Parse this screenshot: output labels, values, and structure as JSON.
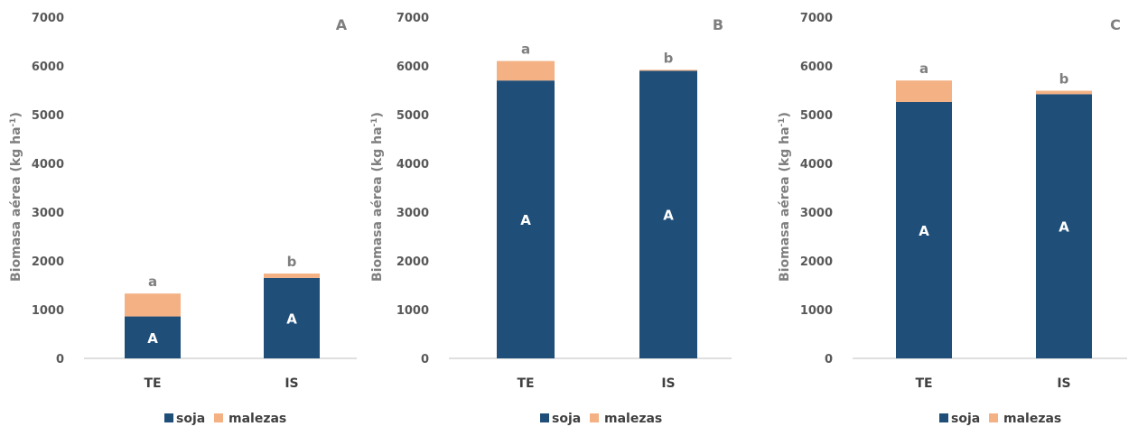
{
  "colors": {
    "soja": "#1f4e79",
    "malezas": "#f4b183",
    "axis": "#bfbfbf",
    "text": "#595959"
  },
  "chart_data": [
    {
      "type": "bar",
      "stacked": true,
      "panel_label": "A",
      "categories": [
        "TE",
        "IS"
      ],
      "series": [
        {
          "name": "soja",
          "values": [
            860,
            1650
          ]
        },
        {
          "name": "malezas",
          "values": [
            470,
            90
          ]
        }
      ],
      "lower_letters": [
        "a",
        "b"
      ],
      "upper_letters": [
        "A",
        "A"
      ],
      "ylabel": "Biomasa aérea (kg ha",
      "ylabel_sup": "-1",
      "ylabel_close": ")",
      "ylim": [
        0,
        7000
      ],
      "yticks": [
        0,
        1000,
        2000,
        3000,
        4000,
        5000,
        6000,
        7000
      ],
      "legend": [
        "soja",
        "malezas"
      ],
      "legend_position": "bottom",
      "grid": false
    },
    {
      "type": "bar",
      "stacked": true,
      "panel_label": "B",
      "categories": [
        "TE",
        "IS"
      ],
      "series": [
        {
          "name": "soja",
          "values": [
            5700,
            5900
          ]
        },
        {
          "name": "malezas",
          "values": [
            400,
            20
          ]
        }
      ],
      "lower_letters": [
        "a",
        "b"
      ],
      "upper_letters": [
        "A",
        "A"
      ],
      "ylabel": "Biomasa aérea (kg ha",
      "ylabel_sup": "-1",
      "ylabel_close": ")",
      "ylim": [
        0,
        7000
      ],
      "yticks": [
        0,
        1000,
        2000,
        3000,
        4000,
        5000,
        6000,
        7000
      ],
      "legend": [
        "soja",
        "malezas"
      ],
      "legend_position": "bottom",
      "grid": false
    },
    {
      "type": "bar",
      "stacked": true,
      "panel_label": "C",
      "categories": [
        "TE",
        "IS"
      ],
      "series": [
        {
          "name": "soja",
          "values": [
            5260,
            5420
          ]
        },
        {
          "name": "malezas",
          "values": [
            440,
            70
          ]
        }
      ],
      "lower_letters": [
        "a",
        "b"
      ],
      "upper_letters": [
        "A",
        "A"
      ],
      "ylabel": "Biomasa aérea (kg ha",
      "ylabel_sup": "-1",
      "ylabel_close": ")",
      "ylim": [
        0,
        7000
      ],
      "yticks": [
        0,
        1000,
        2000,
        3000,
        4000,
        5000,
        6000,
        7000
      ],
      "legend": [
        "soja",
        "malezas"
      ],
      "legend_position": "bottom",
      "grid": false
    }
  ]
}
